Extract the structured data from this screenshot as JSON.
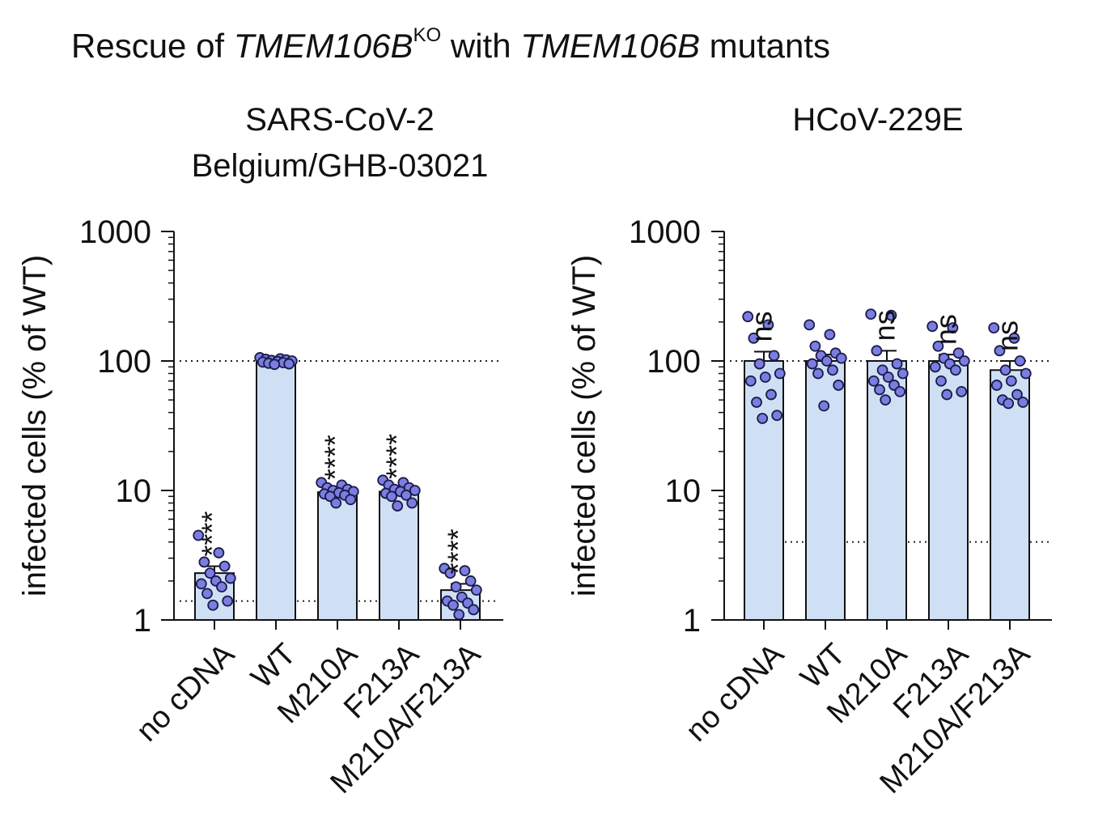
{
  "figure_title": {
    "prefix": "Rescue of ",
    "gene1": "TMEM106B",
    "superscript": "KO",
    "middle": " with ",
    "gene2": "TMEM106B",
    "suffix": " mutants"
  },
  "colors": {
    "bar_fill": "#cfe0f5",
    "point_fill": "#7b7ee0",
    "stroke": "#111111"
  },
  "chart_data": [
    {
      "type": "bar",
      "title": "SARS-CoV-2 Belgium/GHB-03021",
      "title_lines": [
        "SARS-CoV-2",
        "Belgium/GHB-03021"
      ],
      "ylabel": "infected cells (% of WT)",
      "yscale": "log",
      "ylim": [
        1,
        1000
      ],
      "yticks": [
        1,
        10,
        100,
        1000
      ],
      "ytick_labels": [
        "1",
        "10",
        "100",
        "1000"
      ],
      "categories": [
        "no cDNA",
        "WT",
        "M210A",
        "F213A",
        "M210A/F213A"
      ],
      "values": [
        2.3,
        100,
        9.7,
        9.8,
        1.7
      ],
      "sem": [
        0.3,
        2,
        0.4,
        0.5,
        0.2
      ],
      "significance": [
        "****",
        "",
        "****",
        "****",
        "****"
      ],
      "points": [
        [
          4.5,
          3.3,
          2.8,
          2.6,
          2.3,
          2.1,
          2.0,
          1.9,
          1.8,
          1.6,
          1.4,
          1.3
        ],
        [
          106,
          104,
          103,
          102,
          101,
          100,
          99,
          98,
          97,
          96,
          95,
          94
        ],
        [
          11.5,
          11,
          10.5,
          10.2,
          10,
          9.8,
          9.6,
          9.4,
          9.2,
          9,
          8.5,
          8
        ],
        [
          12,
          11.5,
          11,
          10.5,
          10.2,
          10,
          9.8,
          9.5,
          9.2,
          9,
          8,
          7.6
        ],
        [
          2.5,
          2.4,
          2.3,
          2.0,
          1.8,
          1.7,
          1.5,
          1.4,
          1.35,
          1.3,
          1.2,
          1.1
        ]
      ],
      "reference_lines": [
        100,
        1.4
      ]
    },
    {
      "type": "bar",
      "title": "HCoV-229E",
      "title_lines": [
        "HCoV-229E"
      ],
      "ylabel": "infected cells (% of WT)",
      "yscale": "log",
      "ylim": [
        1,
        1000
      ],
      "yticks": [
        1,
        10,
        100,
        1000
      ],
      "ytick_labels": [
        "1",
        "10",
        "100",
        "1000"
      ],
      "categories": [
        "no cDNA",
        "WT",
        "M210A",
        "F213A",
        "M210A/F213A"
      ],
      "values": [
        100,
        100,
        100,
        100,
        85
      ],
      "sem": [
        18,
        12,
        20,
        12,
        15
      ],
      "significance": [
        "ns",
        "",
        "ns",
        "ns",
        "ns"
      ],
      "points": [
        [
          220,
          190,
          150,
          110,
          95,
          80,
          75,
          70,
          55,
          48,
          38,
          36
        ],
        [
          190,
          160,
          130,
          115,
          110,
          105,
          100,
          95,
          85,
          80,
          65,
          45
        ],
        [
          230,
          225,
          120,
          95,
          85,
          80,
          75,
          70,
          65,
          60,
          58,
          50
        ],
        [
          185,
          180,
          130,
          115,
          105,
          100,
          95,
          90,
          85,
          70,
          58,
          55
        ],
        [
          180,
          150,
          120,
          100,
          85,
          80,
          70,
          65,
          55,
          50,
          48,
          47
        ]
      ],
      "reference_lines": [
        100,
        4
      ]
    }
  ]
}
